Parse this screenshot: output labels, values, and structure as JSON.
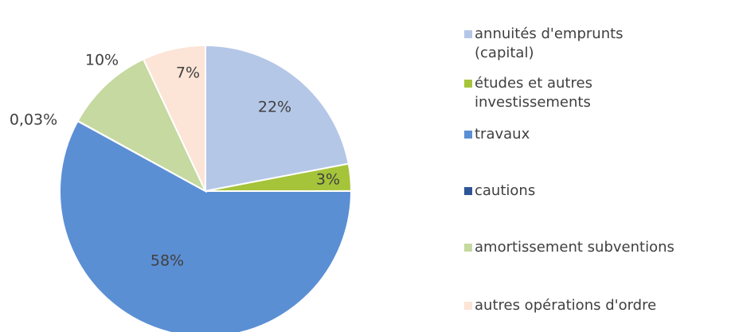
{
  "chart_data": {
    "type": "pie",
    "categories": [
      "annuités d'emprunts (capital)",
      "études et autres investissements",
      "travaux",
      "cautions",
      "amortissement subventions",
      "autres opérations d'ordre"
    ],
    "values": [
      22,
      3,
      58,
      0.03,
      10,
      7
    ],
    "value_labels": [
      "22%",
      "3%",
      "58%",
      "0,03%",
      "10%",
      "7%"
    ],
    "colors": [
      "#b4c7e7",
      "#a5c43a",
      "#5b8fd4",
      "#2e5597",
      "#c5d9a0",
      "#fce4d6"
    ],
    "legend": "right"
  }
}
